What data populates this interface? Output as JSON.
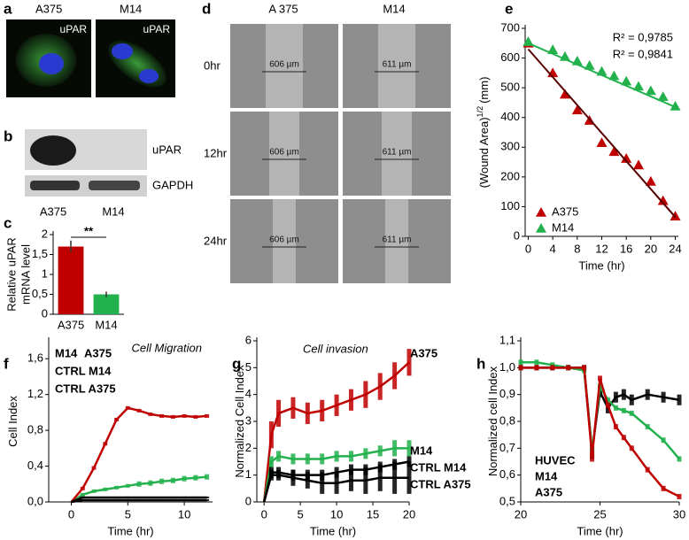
{
  "panels": {
    "a": {
      "letter": "a",
      "labels": [
        "A375",
        "M14"
      ],
      "image_labels": [
        "uPAR",
        "uPAR"
      ]
    },
    "b": {
      "letter": "b",
      "bands": [
        "uPAR",
        "GAPDH"
      ],
      "lanes": [
        "A375",
        "M14"
      ]
    },
    "c": {
      "letter": "c"
    },
    "d": {
      "letter": "d",
      "columns": [
        "A 375",
        "M14"
      ],
      "rows": [
        {
          "label": "0hr",
          "measures": [
            "606 µm",
            "611 µm"
          ]
        },
        {
          "label": "12hr",
          "measures": [
            "606 µm",
            "611 µm"
          ]
        },
        {
          "label": "24hr",
          "measures": [
            "606 µm",
            "611 µm"
          ]
        }
      ]
    },
    "e": {
      "letter": "e"
    },
    "f": {
      "letter": "f"
    },
    "g": {
      "letter": "g"
    },
    "h": {
      "letter": "h"
    }
  },
  "chart_data": [
    {
      "type": "bar",
      "y_label": [
        "Relative uPAR",
        "mRNA level"
      ],
      "categories": [
        "A375",
        "M14"
      ],
      "values": [
        1.7,
        0.5
      ],
      "errors": [
        0.15,
        0.07
      ],
      "colors": [
        "#c00000",
        "#22b14c"
      ],
      "annotation": "**",
      "ylim": [
        0,
        2
      ],
      "yticks": [
        0,
        {
          "value": 0.5,
          "label": "0,5"
        },
        1,
        {
          "value": 1.5,
          "label": "1,5"
        },
        2
      ]
    },
    {
      "type": "scatter",
      "x_label": "Time (hr)",
      "y_label": "(Wound Area)",
      "y_label_sup": "1/2",
      "y_label_unit": "(mm)",
      "x": [
        0,
        4,
        6,
        8,
        10,
        12,
        14,
        16,
        18,
        20,
        22,
        24
      ],
      "series": [
        {
          "name": "A375",
          "color": "#c00000",
          "values": [
            650,
            550,
            478,
            425,
            390,
            315,
            285,
            262,
            240,
            185,
            120,
            68
          ],
          "trend": {
            "x": [
              0,
              24
            ],
            "values": [
              630,
              65
            ]
          },
          "trend_color": "#5a0000"
        },
        {
          "name": "M14",
          "color": "#22b14c",
          "values": [
            655,
            628,
            605,
            590,
            575,
            555,
            540,
            522,
            505,
            490,
            470,
            438
          ],
          "trend": {
            "x": [
              0,
              24
            ],
            "values": [
              650,
              435
            ]
          },
          "trend_color": "#22b14c"
        }
      ],
      "annotations": [
        "R² = 0,9785",
        "R² = 0,9841"
      ],
      "xlim": [
        -0.5,
        24.5
      ],
      "xticks": [
        0,
        4,
        8,
        12,
        16,
        20,
        24
      ],
      "ylim": [
        0,
        700
      ],
      "yticks": [
        0,
        100,
        200,
        300,
        400,
        500,
        600,
        700
      ]
    },
    {
      "type": "line",
      "x_label": "Time (hr)",
      "y_label": "Cell Index",
      "annotation": "Cell Migration",
      "x": [
        0,
        1,
        2,
        3,
        4,
        5,
        6,
        7,
        8,
        9,
        10,
        11,
        12
      ],
      "series": [
        {
          "name": "M14",
          "color": "#22b14c",
          "values": [
            0,
            0.08,
            0.12,
            0.14,
            0.16,
            0.18,
            0.2,
            0.21,
            0.23,
            0.24,
            0.26,
            0.27,
            0.28
          ],
          "errors": [
            0,
            0.02,
            0.02,
            0.02,
            0.02,
            0.02,
            0.03,
            0.03,
            0.03,
            0.03,
            0.03,
            0.03,
            0.03
          ]
        },
        {
          "name": "A375",
          "color": "#c00000",
          "values": [
            0,
            0.15,
            0.38,
            0.65,
            0.92,
            1.05,
            1.02,
            0.98,
            0.96,
            0.95,
            0.96,
            0.95,
            0.96
          ],
          "errors": [
            0,
            0.02,
            0.02,
            0.02,
            0.02,
            0.02,
            0.02,
            0.02,
            0.02,
            0.02,
            0.02,
            0.02,
            0.02
          ]
        },
        {
          "name": "CTRL M14",
          "color": "#000000",
          "values": [
            0,
            0.05,
            0.05,
            0.05,
            0.05,
            0.05,
            0.05,
            0.05,
            0.05,
            0.05,
            0.05,
            0.05,
            0.05
          ],
          "errors": [
            0,
            0.01,
            0.01,
            0.01,
            0.01,
            0.01,
            0.01,
            0.01,
            0.01,
            0.01,
            0.01,
            0.01,
            0.01
          ]
        },
        {
          "name": "CTRL A375",
          "color": "#000000",
          "values": [
            0,
            0.02,
            0.02,
            0.02,
            0.02,
            0.02,
            0.02,
            0.02,
            0.02,
            0.02,
            0.02,
            0.02,
            0.02
          ],
          "errors": [
            0,
            0.01,
            0.01,
            0.01,
            0.01,
            0.01,
            0.01,
            0.01,
            0.01,
            0.01,
            0.01,
            0.01,
            0.01
          ]
        }
      ],
      "xlim": [
        -2,
        12.5
      ],
      "xticks": [
        0,
        5,
        10
      ],
      "ylim": [
        0,
        1.8
      ],
      "yticks": [
        {
          "value": 0,
          "label": "0,0"
        },
        {
          "value": 0.4,
          "label": "0,4"
        },
        {
          "value": 0.8,
          "label": "0,8"
        },
        {
          "value": 1.2,
          "label": "1,2"
        },
        {
          "value": 1.6,
          "label": "1,6"
        }
      ]
    },
    {
      "type": "line",
      "x_label": "Time (hr)",
      "y_label": "Normalized Cell Index",
      "annotation": "Cell invasion",
      "x": [
        0,
        1,
        2,
        4,
        6,
        8,
        10,
        12,
        14,
        16,
        18,
        20
      ],
      "series": [
        {
          "name": "A375",
          "color": "#c00000",
          "values": [
            0,
            2.5,
            3.3,
            3.5,
            3.3,
            3.4,
            3.6,
            3.8,
            4.0,
            4.3,
            4.7,
            5.2
          ],
          "errors": [
            0,
            0.5,
            0.5,
            0.4,
            0.4,
            0.4,
            0.4,
            0.4,
            0.5,
            0.5,
            0.5,
            0.5
          ]
        },
        {
          "name": "M14",
          "color": "#22b14c",
          "values": [
            0,
            1.5,
            1.7,
            1.6,
            1.6,
            1.6,
            1.7,
            1.7,
            1.8,
            1.9,
            2.0,
            2.0
          ],
          "errors": [
            0,
            0.2,
            0.2,
            0.2,
            0.2,
            0.2,
            0.2,
            0.2,
            0.2,
            0.2,
            0.3,
            0.3
          ]
        },
        {
          "name": "CTRL M14",
          "color": "#000000",
          "values": [
            0,
            1.1,
            1.1,
            1.0,
            1.0,
            1.0,
            1.1,
            1.2,
            1.2,
            1.3,
            1.4,
            1.5
          ],
          "errors": [
            0,
            0.2,
            0.2,
            0.2,
            0.2,
            0.2,
            0.2,
            0.2,
            0.2,
            0.2,
            0.2,
            0.2
          ]
        },
        {
          "name": "CTRL A375",
          "color": "#000000",
          "values": [
            0,
            1.0,
            1.0,
            0.9,
            0.8,
            0.7,
            0.7,
            0.8,
            0.8,
            0.9,
            0.9,
            0.9
          ],
          "errors": [
            0,
            0.2,
            0.2,
            0.3,
            0.3,
            0.4,
            0.4,
            0.4,
            0.5,
            0.5,
            0.6,
            0.6
          ]
        }
      ],
      "xlim": [
        -1,
        20
      ],
      "xticks": [
        0,
        5,
        10,
        15,
        20
      ],
      "ylim": [
        0,
        6
      ],
      "yticks": [
        0,
        1,
        2,
        3,
        4,
        5,
        6
      ]
    },
    {
      "type": "line",
      "x_label": "Time (hr)",
      "y_label": "Normalized cell Index",
      "x": [
        20,
        21,
        22,
        23,
        24,
        24.5,
        25,
        25.5,
        26,
        26.5,
        27,
        28,
        29,
        30
      ],
      "series": [
        {
          "name": "HUVEC",
          "color": "#000000",
          "values": [
            1.0,
            1.0,
            1.0,
            1.0,
            1.0,
            0.69,
            0.91,
            0.85,
            0.89,
            0.9,
            0.88,
            0.9,
            0.89,
            0.88
          ],
          "errors": [
            0.01,
            0.01,
            0.01,
            0.01,
            0.01,
            0.03,
            0.02,
            0.02,
            0.02,
            0.02,
            0.02,
            0.02,
            0.02,
            0.02
          ]
        },
        {
          "name": "M14",
          "color": "#22b14c",
          "values": [
            1.02,
            1.02,
            1.01,
            1.0,
            0.99,
            0.69,
            0.93,
            0.88,
            0.85,
            0.84,
            0.83,
            0.78,
            0.73,
            0.66
          ],
          "errors": [
            0.01,
            0.01,
            0.01,
            0.01,
            0.01,
            0.02,
            0.01,
            0.01,
            0.01,
            0.01,
            0.01,
            0.01,
            0.01,
            0.01
          ]
        },
        {
          "name": "A375",
          "color": "#c00000",
          "values": [
            1.0,
            1.0,
            1.0,
            1.0,
            1.0,
            0.67,
            0.96,
            0.86,
            0.78,
            0.74,
            0.7,
            0.62,
            0.55,
            0.52
          ],
          "errors": [
            0.01,
            0.01,
            0.01,
            0.01,
            0.01,
            0.02,
            0.01,
            0.01,
            0.01,
            0.01,
            0.01,
            0.01,
            0.01,
            0.01
          ]
        }
      ],
      "xlim": [
        20,
        30
      ],
      "xticks": [
        20,
        25,
        30
      ],
      "ylim": [
        0.5,
        1.1
      ],
      "yticks": [
        {
          "value": 0.5,
          "label": "0,5"
        },
        {
          "value": 0.6,
          "label": "0,6"
        },
        {
          "value": 0.7,
          "label": "0,7"
        },
        {
          "value": 0.8,
          "label": "0,8"
        },
        {
          "value": 0.9,
          "label": "0,9"
        },
        {
          "value": 1.0,
          "label": "1,0"
        },
        {
          "value": 1.1,
          "label": "1,1"
        }
      ]
    }
  ]
}
